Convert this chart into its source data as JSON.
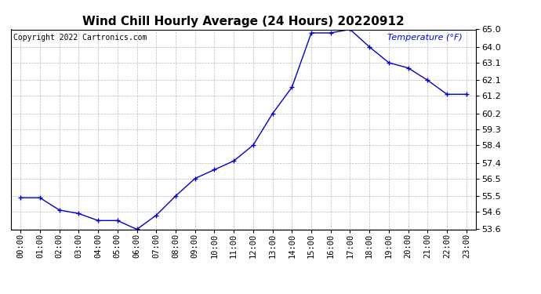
{
  "title": "Wind Chill Hourly Average (24 Hours) 20220912",
  "copyright_text": "Copyright 2022 Cartronics.com",
  "legend_label": "Temperature (°F)",
  "hours": [
    "00:00",
    "01:00",
    "02:00",
    "03:00",
    "04:00",
    "05:00",
    "06:00",
    "07:00",
    "08:00",
    "09:00",
    "10:00",
    "11:00",
    "12:00",
    "13:00",
    "14:00",
    "15:00",
    "16:00",
    "17:00",
    "18:00",
    "19:00",
    "20:00",
    "21:00",
    "22:00",
    "23:00"
  ],
  "values": [
    55.4,
    55.4,
    54.7,
    54.5,
    54.1,
    54.1,
    53.6,
    54.4,
    55.5,
    56.5,
    57.0,
    57.5,
    58.4,
    60.2,
    61.7,
    64.8,
    64.8,
    65.0,
    64.0,
    63.1,
    62.8,
    62.1,
    61.3,
    61.3
  ],
  "ylim_min": 53.6,
  "ylim_max": 65.0,
  "yticks": [
    53.6,
    54.6,
    55.5,
    56.5,
    57.4,
    58.4,
    59.3,
    60.2,
    61.2,
    62.1,
    63.1,
    64.0,
    65.0
  ],
  "line_color": "#0000cc",
  "marker": "+",
  "bg_color": "#ffffff",
  "grid_color": "#aaaaaa",
  "title_fontsize": 11,
  "copyright_fontsize": 7,
  "legend_color": "#0000ff",
  "legend_fontsize": 8,
  "tick_fontsize": 7.5,
  "ytick_fontsize": 8
}
